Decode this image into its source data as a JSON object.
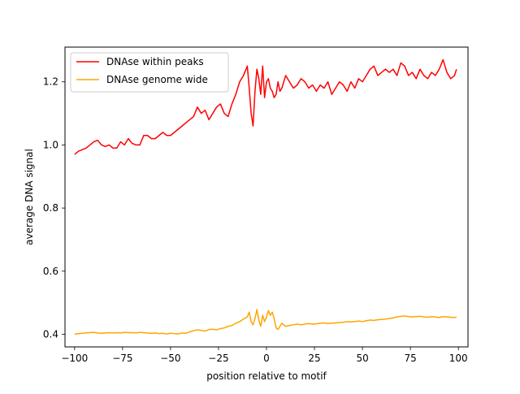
{
  "chart_data": {
    "type": "line",
    "title": "",
    "xlabel": "position relative to motif",
    "ylabel": "average DNA signal",
    "xlim": [
      -105,
      105
    ],
    "ylim": [
      0.36,
      1.31
    ],
    "xticks": [
      -100,
      -75,
      -50,
      -25,
      0,
      25,
      50,
      75,
      100
    ],
    "xtick_labels": [
      "−100",
      "−75",
      "−50",
      "−25",
      "0",
      "25",
      "50",
      "75",
      "100"
    ],
    "yticks": [
      0.4,
      0.6,
      0.8,
      1.0,
      1.2
    ],
    "ytick_labels": [
      "0.4",
      "0.6",
      "0.8",
      "1.0",
      "1.2"
    ],
    "grid": false,
    "legend_position": "upper-left",
    "series": [
      {
        "name": "DNAse within peaks",
        "color": "#ff0000",
        "x": [
          -100,
          -98,
          -96,
          -94,
          -92,
          -90,
          -88,
          -86,
          -84,
          -82,
          -80,
          -78,
          -76,
          -74,
          -72,
          -70,
          -68,
          -66,
          -64,
          -62,
          -60,
          -58,
          -56,
          -54,
          -52,
          -50,
          -48,
          -46,
          -44,
          -42,
          -40,
          -38,
          -36,
          -34,
          -32,
          -30,
          -28,
          -26,
          -24,
          -22,
          -20,
          -18,
          -16,
          -14,
          -12,
          -10,
          -9,
          -8,
          -7,
          -6,
          -5,
          -4,
          -3,
          -2,
          -1,
          0,
          1,
          2,
          3,
          4,
          5,
          6,
          7,
          8,
          9,
          10,
          12,
          14,
          16,
          18,
          20,
          22,
          24,
          26,
          28,
          30,
          32,
          34,
          36,
          38,
          40,
          42,
          44,
          46,
          48,
          50,
          52,
          54,
          56,
          58,
          60,
          62,
          64,
          66,
          68,
          70,
          72,
          74,
          76,
          78,
          80,
          82,
          84,
          86,
          88,
          90,
          92,
          94,
          96,
          98,
          99
        ],
        "y": [
          0.97,
          0.98,
          0.985,
          0.99,
          1.0,
          1.01,
          1.015,
          1.0,
          0.995,
          1.0,
          0.99,
          0.99,
          1.01,
          1.0,
          1.02,
          1.005,
          1.0,
          1.0,
          1.03,
          1.03,
          1.02,
          1.02,
          1.03,
          1.04,
          1.03,
          1.03,
          1.04,
          1.05,
          1.06,
          1.07,
          1.08,
          1.09,
          1.12,
          1.1,
          1.11,
          1.08,
          1.1,
          1.12,
          1.13,
          1.1,
          1.09,
          1.13,
          1.16,
          1.2,
          1.22,
          1.25,
          1.18,
          1.1,
          1.06,
          1.17,
          1.24,
          1.21,
          1.16,
          1.25,
          1.15,
          1.2,
          1.21,
          1.18,
          1.17,
          1.15,
          1.16,
          1.2,
          1.17,
          1.18,
          1.2,
          1.22,
          1.2,
          1.18,
          1.19,
          1.21,
          1.2,
          1.18,
          1.19,
          1.17,
          1.19,
          1.18,
          1.2,
          1.16,
          1.18,
          1.2,
          1.19,
          1.17,
          1.2,
          1.18,
          1.21,
          1.2,
          1.22,
          1.24,
          1.25,
          1.22,
          1.23,
          1.24,
          1.23,
          1.24,
          1.22,
          1.26,
          1.25,
          1.22,
          1.23,
          1.21,
          1.24,
          1.22,
          1.21,
          1.23,
          1.22,
          1.24,
          1.27,
          1.23,
          1.21,
          1.22,
          1.24
        ]
      },
      {
        "name": "DNAse genome wide",
        "color": "#ffa500",
        "x": [
          -100,
          -98,
          -96,
          -94,
          -92,
          -90,
          -88,
          -86,
          -84,
          -82,
          -80,
          -78,
          -76,
          -74,
          -72,
          -70,
          -68,
          -66,
          -64,
          -62,
          -60,
          -58,
          -56,
          -54,
          -52,
          -50,
          -48,
          -46,
          -44,
          -42,
          -40,
          -38,
          -36,
          -34,
          -32,
          -30,
          -28,
          -26,
          -24,
          -22,
          -20,
          -18,
          -16,
          -14,
          -12,
          -10,
          -9,
          -8,
          -7,
          -6,
          -5,
          -4,
          -3,
          -2,
          -1,
          0,
          1,
          2,
          3,
          4,
          5,
          6,
          7,
          8,
          9,
          10,
          12,
          14,
          16,
          18,
          20,
          22,
          24,
          26,
          28,
          30,
          32,
          34,
          36,
          38,
          40,
          42,
          44,
          46,
          48,
          50,
          52,
          54,
          56,
          58,
          60,
          62,
          64,
          66,
          68,
          70,
          72,
          74,
          76,
          78,
          80,
          82,
          84,
          86,
          88,
          90,
          92,
          94,
          96,
          98,
          99
        ],
        "y": [
          0.401,
          0.402,
          0.403,
          0.404,
          0.405,
          0.406,
          0.404,
          0.403,
          0.404,
          0.405,
          0.404,
          0.405,
          0.404,
          0.406,
          0.405,
          0.405,
          0.404,
          0.406,
          0.405,
          0.404,
          0.403,
          0.404,
          0.402,
          0.403,
          0.401,
          0.403,
          0.402,
          0.401,
          0.404,
          0.403,
          0.408,
          0.411,
          0.414,
          0.412,
          0.41,
          0.415,
          0.416,
          0.414,
          0.418,
          0.42,
          0.425,
          0.428,
          0.435,
          0.44,
          0.448,
          0.455,
          0.47,
          0.44,
          0.43,
          0.45,
          0.478,
          0.445,
          0.425,
          0.46,
          0.44,
          0.455,
          0.475,
          0.46,
          0.47,
          0.45,
          0.42,
          0.415,
          0.425,
          0.435,
          0.43,
          0.425,
          0.428,
          0.43,
          0.432,
          0.43,
          0.432,
          0.434,
          0.432,
          0.433,
          0.435,
          0.436,
          0.434,
          0.435,
          0.436,
          0.437,
          0.438,
          0.44,
          0.439,
          0.44,
          0.442,
          0.44,
          0.443,
          0.445,
          0.444,
          0.446,
          0.447,
          0.448,
          0.45,
          0.452,
          0.455,
          0.457,
          0.458,
          0.456,
          0.455,
          0.456,
          0.457,
          0.455,
          0.454,
          0.456,
          0.455,
          0.453,
          0.456,
          0.455,
          0.454,
          0.453,
          0.455
        ]
      }
    ]
  }
}
